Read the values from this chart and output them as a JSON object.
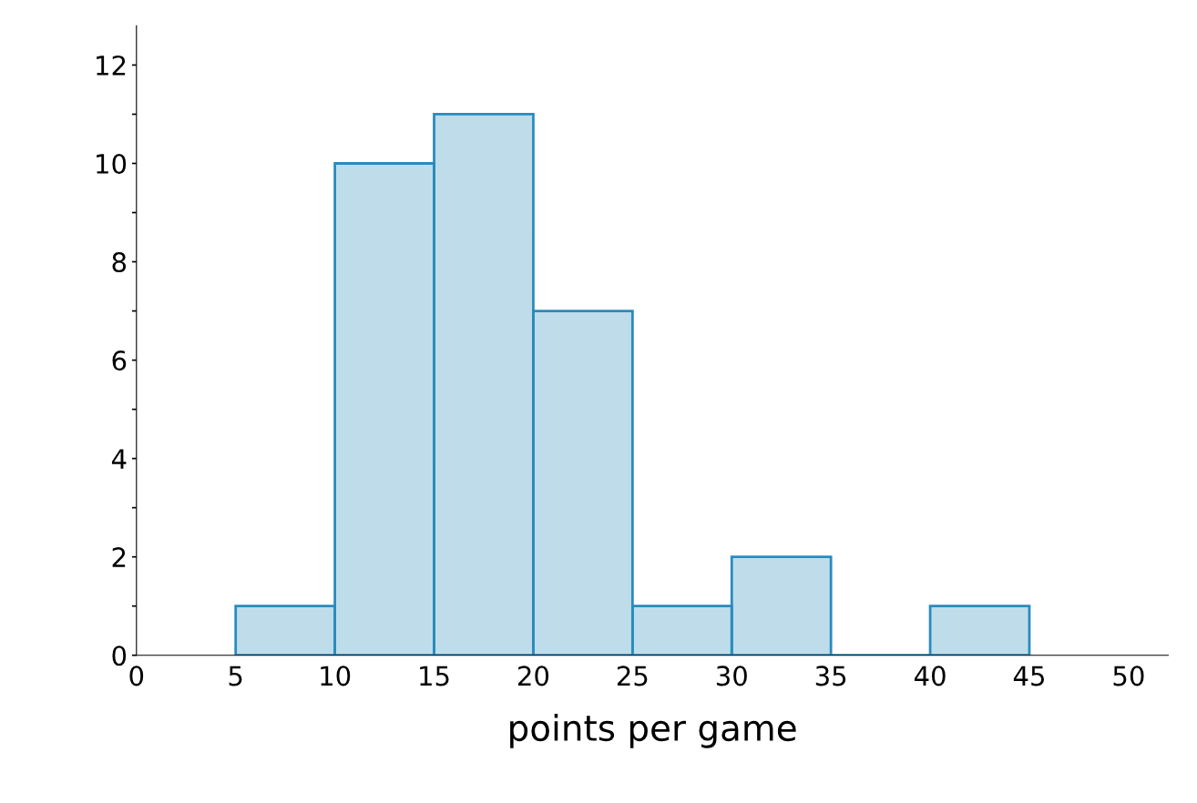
{
  "chart_data": {
    "type": "histogram",
    "xlabel": "points per game",
    "bins": [
      5,
      10,
      15,
      20,
      25,
      30,
      35,
      40,
      45
    ],
    "values": [
      1,
      10,
      11,
      7,
      1,
      2,
      0,
      1
    ],
    "color": "#2a8bbd",
    "xlim": [
      0,
      52
    ],
    "ylim": [
      0,
      12.8
    ],
    "xticks": [
      0,
      5,
      10,
      15,
      20,
      25,
      30,
      35,
      40,
      45,
      50
    ],
    "yticks": [
      0,
      {
        "value": 1,
        "label": null
      },
      2,
      {
        "value": 3,
        "label": null
      },
      4,
      {
        "value": 5,
        "label": null
      },
      6,
      {
        "value": 7,
        "label": null
      },
      8,
      {
        "value": 9,
        "label": null
      },
      10,
      {
        "value": 11,
        "label": null
      },
      12
    ],
    "grid": false
  }
}
